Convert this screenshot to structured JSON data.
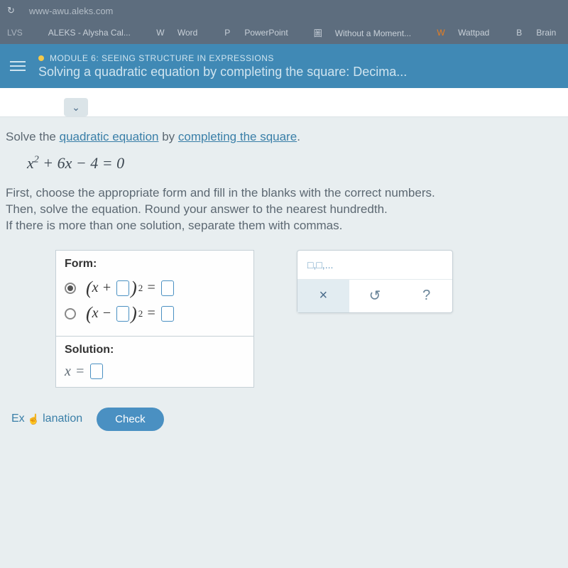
{
  "browser": {
    "url": "www-awu.aleks.com",
    "bookmarks": [
      {
        "icon": "",
        "label": "LVS"
      },
      {
        "icon": "",
        "label": "ALEKS - Alysha Cal..."
      },
      {
        "icon": "W",
        "label": "Word"
      },
      {
        "icon": "P",
        "label": "PowerPoint"
      },
      {
        "icon": "圖",
        "label": "Without a Moment..."
      },
      {
        "icon": "W",
        "label": "Wattpad"
      },
      {
        "icon": "B",
        "label": "Brain"
      }
    ]
  },
  "header": {
    "module": "MODULE 6: SEEING STRUCTURE IN EXPRESSIONS",
    "title": "Solving a quadratic equation by completing the square: Decima..."
  },
  "question": {
    "prompt_pre": "Solve the ",
    "link1": "quadratic equation",
    "prompt_mid": " by ",
    "link2": "completing the square",
    "prompt_post": ".",
    "equation": "x² + 6x − 4 = 0",
    "instructions": "First, choose the appropriate form and fill in the blanks with the correct numbers.\nThen, solve the equation. Round your answer to the nearest hundredth.\nIf there is more than one solution, separate them with commas."
  },
  "form": {
    "label": "Form:",
    "options": [
      {
        "sign": "+",
        "selected": true
      },
      {
        "sign": "−",
        "selected": false
      }
    ],
    "solution_label": "Solution:",
    "solution_var": "x"
  },
  "toolbox": {
    "hint": "□,□,...",
    "buttons": [
      {
        "icon": "×",
        "name": "clear"
      },
      {
        "icon": "↺",
        "name": "reset"
      },
      {
        "icon": "?",
        "name": "help"
      }
    ]
  },
  "footer": {
    "explanation": "Explanation",
    "check": "Check"
  },
  "colors": {
    "browser_bg": "#5d6d7e",
    "header_bg": "#4089b5",
    "link": "#3a7fa8",
    "accent": "#4a90c2",
    "page_bg": "#e8eef0"
  }
}
